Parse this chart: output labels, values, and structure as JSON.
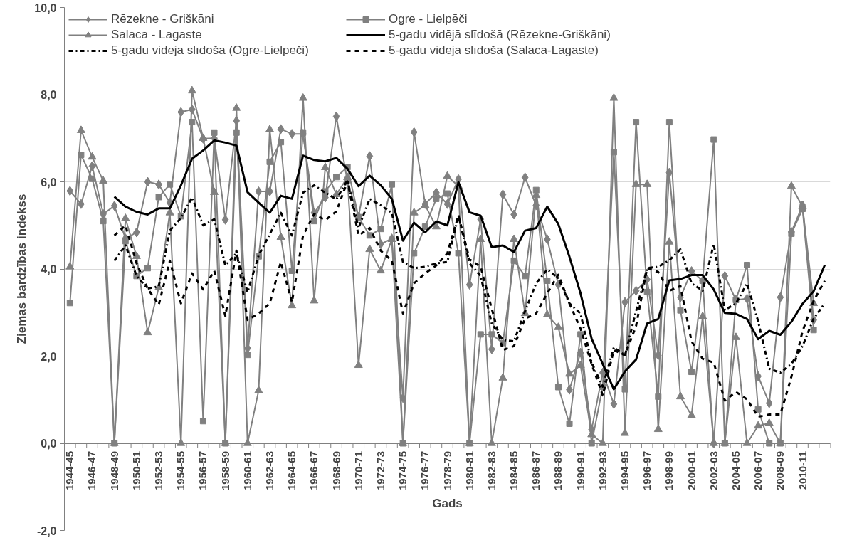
{
  "chart_data": {
    "type": "line",
    "xlabel": "Gads",
    "ylabel": "Ziemas bardzības indekss",
    "categories": [
      "1944-45",
      null,
      "1946-47",
      null,
      "1948-49",
      null,
      "1950-51",
      null,
      "1952-53",
      null,
      "1954-55",
      null,
      "1956-57",
      null,
      "1958-59",
      null,
      "1960-61",
      null,
      "1962-63",
      null,
      "1964-65",
      null,
      "1966-67",
      null,
      "1968-69",
      null,
      "1970-71",
      null,
      "1972-73",
      null,
      "1974-75",
      null,
      "1976-77",
      null,
      "1978-79",
      null,
      "1980-81",
      null,
      "1982-83",
      null,
      "1984-85",
      null,
      "1986-87",
      null,
      "1988-89",
      null,
      "1990-91",
      null,
      "1992-93",
      null,
      "1994-95",
      null,
      "1996-97",
      null,
      "1998-99",
      null,
      "2000-01",
      null,
      "2002-03",
      null,
      "2004-05",
      null,
      "2006-07",
      null,
      "2008-09",
      null,
      "2010-11",
      null,
      null
    ],
    "ylim": [
      -2,
      10
    ],
    "yticks": [
      {
        "value": -2,
        "label": "-2,0"
      },
      {
        "value": 0,
        "label": "0,0"
      },
      {
        "value": 2,
        "label": "2,0"
      },
      {
        "value": 4,
        "label": "4,0"
      },
      {
        "value": 6,
        "label": "6,0"
      },
      {
        "value": 8,
        "label": "8,0"
      },
      {
        "value": 10,
        "label": "10,0"
      }
    ],
    "grid": "y",
    "legend": "top",
    "series": [
      {
        "name": "Rēzekne - Griškāni",
        "color": "#808080",
        "marker": "diamond",
        "line_style": "solid",
        "values": [
          5.79,
          5.49,
          6.36,
          5.26,
          5.45,
          4.7,
          4.84,
          6.0,
          5.94,
          5.52,
          7.6,
          7.66,
          6.99,
          7.0,
          5.13,
          7.4,
          2.18,
          5.78,
          5.78,
          7.21,
          7.1,
          7.1,
          5.29,
          5.64,
          7.5,
          6.0,
          5.2,
          6.59,
          4.57,
          4.7,
          1.04,
          7.14,
          5.49,
          5.75,
          5.49,
          6.06,
          3.64,
          5.14,
          2.16,
          5.71,
          5.25,
          6.1,
          5.46,
          4.68,
          3.64,
          1.23,
          2.08,
          0.32,
          1.62,
          0.9,
          3.24,
          3.5,
          3.76,
          2.02,
          6.21,
          3.35,
          3.95,
          3.73,
          0,
          3.84,
          3.29,
          3.32,
          1.54,
          0.92,
          3.35,
          4.85,
          5.46,
          2.83,
          null
        ]
      },
      {
        "name": "Ogre - Lielpēči",
        "color": "#808080",
        "marker": "square",
        "line_style": "solid",
        "values": [
          3.22,
          6.62,
          6.07,
          5.1,
          0,
          4.64,
          3.84,
          4.02,
          5.65,
          5.94,
          5.21,
          7.37,
          0.51,
          7.13,
          0,
          7.13,
          2.03,
          4.29,
          6.46,
          6.91,
          3.96,
          7.13,
          5.1,
          5.78,
          6.11,
          6.34,
          5.19,
          4.77,
          4.92,
          5.94,
          0,
          4.36,
          4.97,
          5.61,
          5.73,
          4.36,
          0,
          2.5,
          2.5,
          2.3,
          4.19,
          3.84,
          5.81,
          3.73,
          1.29,
          0.45,
          2.5,
          0,
          1.3,
          6.68,
          1.24,
          7.37,
          3.47,
          1.07,
          7.37,
          3.05,
          1.64,
          3.73,
          6.97,
          0,
          3.29,
          4.09,
          0.78,
          0,
          0,
          4.81,
          5.38,
          2.6,
          null
        ]
      },
      {
        "name": "Salaca - Lagaste",
        "color": "#808080",
        "marker": "triangle",
        "line_style": "solid",
        "values": [
          4.05,
          7.18,
          6.57,
          6.02,
          0,
          5.16,
          4.29,
          2.54,
          3.57,
          5.29,
          0,
          8.09,
          7.0,
          5.76,
          0,
          7.69,
          0,
          1.21,
          7.2,
          4.73,
          3.16,
          7.92,
          3.27,
          6.33,
          5.71,
          6.1,
          1.79,
          4.45,
          3.96,
          4.68,
          0,
          5.29,
          5.46,
          4.97,
          6.13,
          5.9,
          0,
          4.68,
          0,
          1.5,
          4.68,
          2.98,
          5.69,
          2.95,
          2.66,
          1.59,
          1.79,
          0.2,
          0,
          7.92,
          0.23,
          5.94,
          5.94,
          0.32,
          4.62,
          1.07,
          0.64,
          2.91,
          0,
          0,
          2.43,
          0,
          0.4,
          0.46,
          0,
          5.9,
          5.43,
          3.21,
          null
        ]
      },
      {
        "name": "5-gadu vidējā slīdošā (Rēzekne-Griškāni)",
        "color": "#000000",
        "marker": "none",
        "line_style": "solid",
        "values": [
          null,
          null,
          null,
          null,
          5.66,
          5.43,
          5.31,
          5.25,
          5.39,
          5.39,
          5.92,
          6.53,
          6.72,
          6.95,
          6.9,
          6.83,
          5.76,
          5.52,
          5.29,
          5.68,
          5.61,
          6.6,
          6.5,
          6.47,
          6.55,
          6.3,
          5.9,
          6.14,
          5.92,
          5.61,
          4.65,
          5.06,
          4.84,
          5.09,
          5.0,
          5.99,
          5.3,
          5.22,
          4.5,
          4.54,
          4.39,
          4.88,
          4.94,
          5.43,
          5.03,
          4.28,
          3.44,
          2.4,
          1.82,
          1.24,
          1.65,
          1.92,
          2.75,
          2.85,
          3.74,
          3.77,
          3.86,
          3.86,
          3.53,
          2.99,
          2.97,
          2.85,
          2.39,
          2.58,
          2.49,
          2.79,
          3.2,
          3.49,
          4.09
        ]
      },
      {
        "name": "5-gadu vidējā slīdošā (Ogre-Lielpēči)",
        "color": "#000000",
        "marker": "none",
        "line_style": "dashdot",
        "values": [
          null,
          null,
          null,
          null,
          4.19,
          4.54,
          3.84,
          3.55,
          3.6,
          4.88,
          5.17,
          5.64,
          5.0,
          5.14,
          4.08,
          4.36,
          3.47,
          4.31,
          4.8,
          5.29,
          4.77,
          5.75,
          5.92,
          5.75,
          5.6,
          6.04,
          4.94,
          5.61,
          5.46,
          5.29,
          4.16,
          4.02,
          4.05,
          4.13,
          4.16,
          5.23,
          4.13,
          3.84,
          2.75,
          2.37,
          2.34,
          3.03,
          3.67,
          3.99,
          3.79,
          3.21,
          2.98,
          1.85,
          1.3,
          2.2,
          2.02,
          3.03,
          4.02,
          4.05,
          4.2,
          4.45,
          3.67,
          3.5,
          4.57,
          3.06,
          3.21,
          3.67,
          2.8,
          1.71,
          1.62,
          1.82,
          2.23,
          2.86,
          3.21
        ]
      },
      {
        "name": "5-gadu vidējā slīdošā (Salaca-Lagaste)",
        "color": "#000000",
        "marker": "none",
        "line_style": "dashed",
        "values": [
          null,
          null,
          null,
          null,
          4.77,
          5.0,
          4.13,
          3.55,
          3.18,
          4.19,
          3.21,
          3.9,
          3.53,
          3.96,
          2.92,
          4.42,
          2.83,
          2.98,
          3.21,
          4.16,
          3.24,
          4.77,
          5.26,
          5.12,
          5.32,
          6.01,
          4.77,
          4.94,
          4.42,
          4.19,
          2.98,
          3.67,
          3.9,
          4.08,
          4.36,
          5.23,
          4.22,
          4.05,
          3.09,
          2.14,
          2.23,
          2.86,
          2.98,
          3.44,
          3.87,
          3.21,
          2.63,
          1.82,
          1.1,
          2.14,
          2.02,
          2.69,
          4.02,
          3.93,
          3.5,
          3.61,
          2.34,
          1.94,
          1.85,
          0.98,
          1.18,
          1.01,
          0.61,
          0.66,
          0.66,
          1.53,
          2.57,
          3.27,
          3.73
        ]
      }
    ]
  }
}
